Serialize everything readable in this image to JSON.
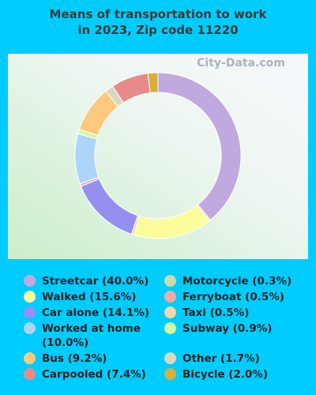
{
  "chart_data": {
    "type": "donut",
    "title": "Means of transportation to work in 2023, Zip code 11220",
    "watermark": "City-Data.com",
    "categories": [
      "Streetcar (40.0%)",
      "Motorcycle (0.3%)",
      "Walked (15.6%)",
      "Taxi (0.5%)",
      "Car alone (14.1%)",
      "Ferryboat (0.5%)",
      "Worked at home (10.0%)",
      "Subway (0.9%)",
      "Bus (9.2%)",
      "Other (1.7%)",
      "Carpooled (7.4%)",
      "Bicycle (2.0%)"
    ],
    "values": [
      40.0,
      0.3,
      15.6,
      0.5,
      14.1,
      0.5,
      10.0,
      0.9,
      9.2,
      1.7,
      7.4,
      2.0
    ],
    "colors": [
      "#c0a9de",
      "#c9dba8",
      "#fcfc9a",
      "#f6d5a9",
      "#9590ef",
      "#f2aaa2",
      "#add5fb",
      "#d3f9a1",
      "#fdc97f",
      "#dcd8bf",
      "#e98a8a",
      "#d5b03b"
    ]
  }
}
